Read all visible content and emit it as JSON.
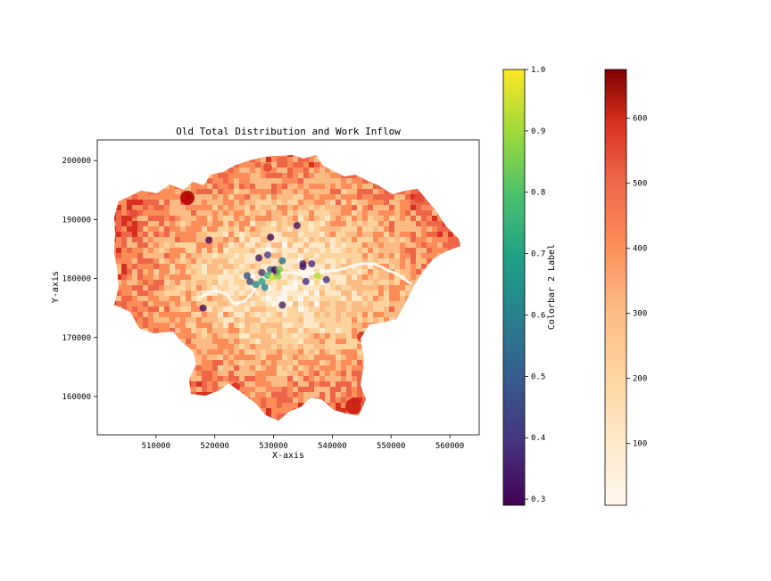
{
  "title": "Old Total Distribution and Work Inflow",
  "x_axis": {
    "label": "X-axis",
    "range": [
      500000,
      565000
    ],
    "ticks": [
      510000,
      520000,
      530000,
      540000,
      550000,
      560000
    ],
    "tick_labels": [
      "510000",
      "520000",
      "530000",
      "540000",
      "550000",
      "560000"
    ]
  },
  "y_axis": {
    "label": "Y-axis",
    "range": [
      153500,
      203500
    ],
    "ticks": [
      160000,
      170000,
      180000,
      190000,
      200000
    ],
    "tick_labels": [
      "160000",
      "170000",
      "180000",
      "190000",
      "200000"
    ]
  },
  "colorbar_points": {
    "label": "Colorbar 2 Label",
    "colormap": "viridis",
    "range": [
      0.29,
      1.0
    ],
    "ticks": [
      0.3,
      0.4,
      0.5,
      0.6,
      0.7,
      0.8,
      0.9,
      1.0
    ],
    "tick_labels": [
      "0.3",
      "0.4",
      "0.5",
      "0.6",
      "0.7",
      "0.8",
      "0.9",
      "1.0"
    ]
  },
  "colorbar_map": {
    "label": "",
    "colormap": "OrRd",
    "range": [
      5,
      675
    ],
    "ticks": [
      100,
      200,
      300,
      400,
      500,
      600
    ],
    "tick_labels": [
      "100",
      "200",
      "300",
      "400",
      "500",
      "600"
    ]
  },
  "chart_data": {
    "type": "scatter",
    "title": "Old Total Distribution and Work Inflow",
    "xlabel": "X-axis",
    "ylabel": "Y-axis",
    "xlim": [
      500000,
      565000
    ],
    "ylim": [
      153500,
      203500
    ],
    "series": [
      {
        "points": [
          {
            "x": 519000,
            "y": 186500,
            "v": 0.32
          },
          {
            "x": 518000,
            "y": 175000,
            "v": 0.31
          },
          {
            "x": 529500,
            "y": 187000,
            "v": 0.3
          },
          {
            "x": 534000,
            "y": 189000,
            "v": 0.33
          },
          {
            "x": 527500,
            "y": 183500,
            "v": 0.34
          },
          {
            "x": 529000,
            "y": 184000,
            "v": 0.42
          },
          {
            "x": 531500,
            "y": 183000,
            "v": 0.55
          },
          {
            "x": 535000,
            "y": 182500,
            "v": 0.33
          },
          {
            "x": 536500,
            "y": 182500,
            "v": 0.36
          },
          {
            "x": 535000,
            "y": 182000,
            "v": 0.34
          },
          {
            "x": 528000,
            "y": 181000,
            "v": 0.4
          },
          {
            "x": 529500,
            "y": 181500,
            "v": 0.52
          },
          {
            "x": 530200,
            "y": 181500,
            "v": 0.3
          },
          {
            "x": 530500,
            "y": 181000,
            "v": 0.36
          },
          {
            "x": 531000,
            "y": 181500,
            "v": 0.85
          },
          {
            "x": 529000,
            "y": 180500,
            "v": 0.75
          },
          {
            "x": 529800,
            "y": 180200,
            "v": 0.95
          },
          {
            "x": 530800,
            "y": 180400,
            "v": 0.88
          },
          {
            "x": 525500,
            "y": 180500,
            "v": 0.48
          },
          {
            "x": 526000,
            "y": 179500,
            "v": 0.45
          },
          {
            "x": 527000,
            "y": 179000,
            "v": 0.62
          },
          {
            "x": 528000,
            "y": 179500,
            "v": 0.7
          },
          {
            "x": 528500,
            "y": 178500,
            "v": 0.6
          },
          {
            "x": 535500,
            "y": 179500,
            "v": 0.38
          },
          {
            "x": 537500,
            "y": 180500,
            "v": 0.92
          },
          {
            "x": 539000,
            "y": 179800,
            "v": 0.4
          },
          {
            "x": 531500,
            "y": 175500,
            "v": 0.36
          }
        ]
      }
    ]
  }
}
